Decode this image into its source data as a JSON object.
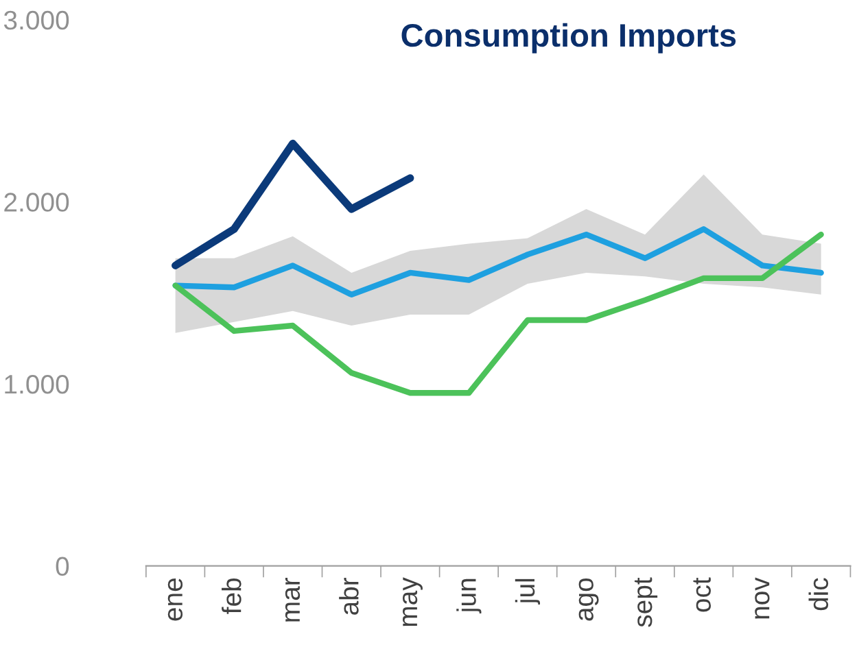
{
  "chart_data": {
    "type": "line",
    "title": "Consumption Imports",
    "categories": [
      "ene",
      "feb",
      "mar",
      "abr",
      "may",
      "jun",
      "jul",
      "ago",
      "sept",
      "oct",
      "nov",
      "dic"
    ],
    "series": [
      {
        "color": "#1ea0e0",
        "values": [
          1540,
          1530,
          1650,
          1490,
          1610,
          1570,
          1710,
          1820,
          1690,
          1850,
          1650,
          1610
        ],
        "upper": [
          1690,
          1690,
          1810,
          1610,
          1730,
          1770,
          1800,
          1960,
          1820,
          2150,
          1820,
          1770
        ],
        "lower": [
          1280,
          1340,
          1400,
          1320,
          1380,
          1380,
          1550,
          1610,
          1590,
          1550,
          1530,
          1490
        ]
      },
      {
        "color": "#4cc25a",
        "values": [
          1540,
          1290,
          1320,
          1060,
          950,
          950,
          1350,
          1350,
          1460,
          1580,
          1580,
          1820
        ]
      },
      {
        "color": "#0b3a7a",
        "values": [
          1650,
          1850,
          2320,
          1960,
          2130,
          null,
          null,
          null,
          null,
          null,
          null,
          null
        ]
      }
    ],
    "ylim": [
      0,
      3000
    ],
    "yticks": [
      {
        "value": 0,
        "label": "0"
      },
      {
        "value": 1000,
        "label": "1.000"
      },
      {
        "value": 2000,
        "label": "2.000"
      },
      {
        "value": 3000,
        "label": "3.000"
      }
    ],
    "grid": false,
    "legend": false
  }
}
